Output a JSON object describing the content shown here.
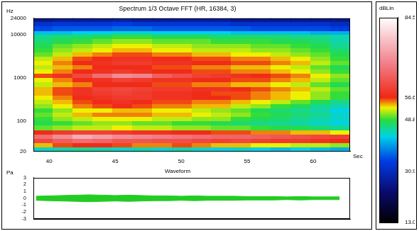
{
  "chart_data": [
    {
      "type": "heatmap",
      "title": "Spectrum 1/3 Octave FFT (HR, 16384, 3)",
      "x_label": "Sec",
      "y_label": "Hz",
      "log": "y",
      "xlim": [
        38.8,
        62.8
      ],
      "xticks": [
        40,
        45,
        50,
        55,
        60
      ],
      "ylim": [
        20,
        24000
      ],
      "yticks": [
        20,
        100,
        1000,
        10000,
        24000
      ],
      "x_bins": [
        38.8,
        40.3,
        41.8,
        43.3,
        44.8,
        46.3,
        47.8,
        49.3,
        50.8,
        52.3,
        53.8,
        55.3,
        56.8,
        58.3,
        59.8,
        61.3,
        62.8
      ],
      "y_bins": [
        20,
        25,
        31.5,
        40,
        50,
        63,
        80,
        100,
        125,
        160,
        200,
        250,
        315,
        400,
        500,
        630,
        800,
        1000,
        1250,
        1600,
        2000,
        2500,
        3150,
        4000,
        5000,
        6300,
        8000,
        10000,
        12500,
        16000,
        20000,
        24000
      ],
      "cells": [
        [
          44,
          45,
          46,
          45,
          44,
          45,
          44,
          45,
          44,
          43,
          44,
          43,
          42,
          43,
          42,
          41
        ],
        [
          54,
          56,
          57,
          57,
          56,
          55,
          55,
          56,
          55,
          54,
          54,
          53,
          53,
          52,
          52,
          51
        ],
        [
          61,
          64,
          66,
          65,
          63,
          63,
          62,
          62,
          61,
          60,
          61,
          60,
          59,
          59,
          58,
          57
        ],
        [
          66,
          70,
          74,
          72,
          70,
          69,
          68,
          67,
          66,
          65,
          65,
          64,
          63,
          62,
          61,
          60
        ],
        [
          57,
          59,
          60,
          60,
          59,
          58,
          58,
          57,
          57,
          56,
          56,
          55,
          55,
          54,
          54,
          53
        ],
        [
          50,
          51,
          52,
          52,
          53,
          52,
          52,
          51,
          51,
          50,
          50,
          49,
          48,
          48,
          47,
          46
        ],
        [
          48,
          49,
          50,
          51,
          51,
          50,
          50,
          49,
          49,
          48,
          47,
          46,
          46,
          45,
          44,
          43
        ],
        [
          49,
          51,
          52,
          53,
          53,
          53,
          52,
          52,
          51,
          51,
          49,
          48,
          47,
          46,
          45,
          44
        ],
        [
          50,
          52,
          54,
          55,
          55,
          55,
          54,
          54,
          53,
          52,
          51,
          49,
          48,
          47,
          46,
          44
        ],
        [
          49,
          51,
          53,
          53,
          54,
          54,
          53,
          53,
          52,
          51,
          50,
          48,
          47,
          46,
          45,
          43
        ],
        [
          51,
          53,
          55,
          56,
          57,
          56,
          55,
          55,
          54,
          54,
          52,
          51,
          49,
          48,
          46,
          45
        ],
        [
          52,
          54,
          56,
          57,
          58,
          57,
          56,
          56,
          55,
          55,
          54,
          53,
          52,
          50,
          48,
          46
        ],
        [
          53,
          55,
          57,
          58,
          59,
          59,
          58,
          58,
          57,
          57,
          56,
          55,
          54,
          53,
          51,
          49
        ],
        [
          54,
          56,
          58,
          59,
          60,
          59,
          58,
          58,
          57,
          56,
          56,
          55,
          54,
          53,
          51,
          49
        ],
        [
          54,
          56,
          58,
          60,
          61,
          60,
          59,
          59,
          58,
          58,
          57,
          56,
          55,
          54,
          52,
          50
        ],
        [
          52,
          54,
          55,
          57,
          57,
          57,
          56,
          56,
          55,
          55,
          54,
          54,
          53,
          52,
          50,
          48
        ],
        [
          53,
          55,
          57,
          58,
          60,
          59,
          58,
          58,
          57,
          57,
          56,
          56,
          55,
          54,
          52,
          50
        ],
        [
          56,
          58,
          61,
          66,
          70,
          69,
          64,
          62,
          60,
          59,
          58,
          57,
          56,
          55,
          53,
          51
        ],
        [
          53,
          55,
          57,
          58,
          59,
          58,
          57,
          57,
          56,
          56,
          55,
          55,
          54,
          53,
          51,
          49
        ],
        [
          52,
          54,
          55,
          57,
          57,
          57,
          56,
          56,
          55,
          55,
          54,
          54,
          53,
          52,
          50,
          48
        ],
        [
          53,
          55,
          57,
          58,
          59,
          59,
          58,
          58,
          57,
          57,
          56,
          56,
          55,
          54,
          52,
          50
        ],
        [
          52,
          54,
          56,
          57,
          58,
          58,
          57,
          57,
          56,
          56,
          55,
          55,
          54,
          53,
          51,
          49
        ],
        [
          50,
          52,
          54,
          55,
          56,
          56,
          55,
          55,
          54,
          54,
          53,
          53,
          52,
          51,
          50,
          48
        ],
        [
          49,
          51,
          52,
          53,
          54,
          54,
          53,
          53,
          52,
          52,
          52,
          51,
          51,
          50,
          49,
          47
        ],
        [
          48,
          50,
          51,
          52,
          53,
          53,
          52,
          52,
          51,
          51,
          51,
          50,
          50,
          49,
          48,
          46
        ],
        [
          47,
          48,
          49,
          50,
          51,
          51,
          50,
          50,
          50,
          49,
          49,
          49,
          48,
          48,
          47,
          45
        ],
        [
          46,
          47,
          47,
          48,
          49,
          49,
          48,
          48,
          48,
          47,
          47,
          47,
          47,
          46,
          46,
          45
        ],
        [
          42,
          42,
          43,
          43,
          44,
          44,
          43,
          43,
          43,
          43,
          42,
          42,
          42,
          42,
          41,
          41
        ],
        [
          35,
          36,
          36,
          36,
          37,
          37,
          36,
          36,
          36,
          36,
          36,
          35,
          35,
          35,
          35,
          34
        ],
        [
          32,
          33,
          33,
          33,
          34,
          33,
          33,
          33,
          33,
          33,
          32,
          32,
          32,
          32,
          32,
          31
        ],
        [
          27,
          28,
          28,
          28,
          29,
          28,
          28,
          28,
          28,
          28,
          27,
          27,
          27,
          27,
          27,
          27
        ]
      ],
      "colorbar": {
        "label": "dBLin",
        "range": [
          13,
          84.5
        ],
        "ticks": [
          {
            "value": 13,
            "label": "13.0"
          },
          30.9,
          48.8,
          56.6,
          84.5
        ]
      }
    },
    {
      "type": "line",
      "title": "Waveform",
      "y_label": "Pa",
      "color": "#22cc22",
      "tick_labels": "y",
      "xlim": [
        38.8,
        62.8
      ],
      "ylim": [
        -3,
        3
      ],
      "yticks": [
        -3,
        -2,
        -1,
        0,
        1,
        2,
        3
      ],
      "x": [
        39,
        40,
        41,
        42,
        43,
        44,
        45,
        46,
        47,
        48,
        49,
        50,
        51,
        52,
        53,
        54,
        55,
        56,
        57,
        58,
        59,
        60,
        61,
        62
      ],
      "max": [
        0.3,
        0.35,
        0.4,
        0.45,
        0.5,
        0.45,
        0.4,
        0.45,
        0.4,
        0.35,
        0.35,
        0.3,
        0.35,
        0.3,
        0.3,
        0.3,
        0.25,
        0.25,
        0.25,
        0.2,
        0.25,
        0.2,
        0.2,
        0.2
      ],
      "min": [
        -0.3,
        -0.35,
        -0.4,
        -0.45,
        -0.5,
        -0.45,
        -0.4,
        -0.45,
        -0.4,
        -0.35,
        -0.35,
        -0.3,
        -0.35,
        -0.3,
        -0.3,
        -0.3,
        -0.25,
        -0.25,
        -0.25,
        -0.2,
        -0.25,
        -0.2,
        -0.2,
        -0.2
      ]
    }
  ]
}
